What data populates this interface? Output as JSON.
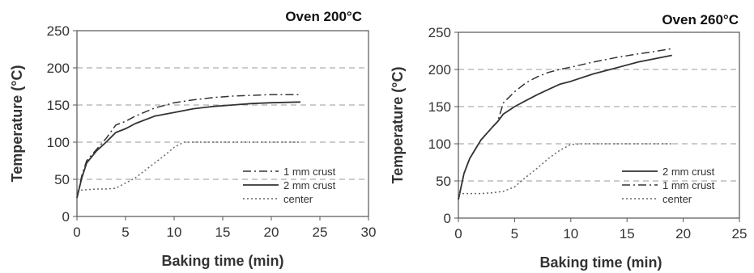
{
  "chart_data": [
    {
      "type": "line",
      "title": "Oven 200°C",
      "xlabel": "Baking time (min)",
      "ylabel": "Temperature (°C)",
      "xlim": [
        0,
        30
      ],
      "ylim": [
        0,
        250
      ],
      "xticks": [
        0,
        5,
        10,
        15,
        20,
        25,
        30
      ],
      "yticks": [
        0,
        50,
        100,
        150,
        200,
        250
      ],
      "grid": "horizontal-dashed",
      "legend_position": "bottom-right",
      "series": [
        {
          "name": "1 mm crust",
          "style": "dash-dot",
          "x": [
            0,
            0.5,
            1,
            2,
            3,
            4,
            5,
            6,
            8,
            10,
            12,
            14,
            16,
            18,
            20,
            23
          ],
          "y": [
            25,
            55,
            75,
            90,
            105,
            123,
            128,
            135,
            146,
            153,
            157,
            160,
            162,
            163,
            164,
            164
          ]
        },
        {
          "name": "2 mm crust",
          "style": "solid",
          "x": [
            0,
            0.5,
            1,
            2,
            3,
            4,
            5,
            6,
            8,
            10,
            12,
            14,
            16,
            18,
            20,
            23
          ],
          "y": [
            25,
            52,
            72,
            88,
            100,
            113,
            118,
            125,
            135,
            140,
            145,
            148,
            150,
            152,
            153,
            154
          ]
        },
        {
          "name": "center",
          "style": "dotted",
          "x": [
            0,
            1,
            2,
            3,
            4,
            5,
            6,
            7,
            8,
            9,
            10,
            11,
            12,
            14,
            16,
            18,
            20,
            23
          ],
          "y": [
            35,
            36,
            37,
            37,
            38,
            45,
            52,
            62,
            72,
            82,
            93,
            100,
            100,
            100,
            100,
            100,
            100,
            100
          ]
        }
      ]
    },
    {
      "type": "line",
      "title": "Oven 260°C",
      "xlabel": "Baking time (min)",
      "ylabel": "Temperature (°C)",
      "xlim": [
        0,
        25
      ],
      "ylim": [
        0,
        250
      ],
      "xticks": [
        0,
        5,
        10,
        15,
        20,
        25
      ],
      "yticks": [
        0,
        50,
        100,
        150,
        200,
        250
      ],
      "grid": "horizontal-dashed",
      "legend_position": "bottom-right",
      "series": [
        {
          "name": "2 mm crust",
          "style": "solid",
          "x": [
            0,
            0.5,
            1,
            2,
            3,
            3.5,
            4,
            5,
            6,
            7,
            8,
            9,
            10,
            12,
            14,
            16,
            17,
            19
          ],
          "y": [
            25,
            60,
            80,
            105,
            122,
            130,
            140,
            150,
            158,
            166,
            173,
            180,
            184,
            194,
            202,
            210,
            213,
            219
          ]
        },
        {
          "name": "1 mm crust",
          "style": "dash-dot",
          "x": [
            0,
            0.5,
            1,
            2,
            3,
            3.5,
            4,
            5,
            6,
            7,
            8,
            9,
            10,
            12,
            14,
            16,
            17,
            19
          ],
          "y": [
            25,
            60,
            80,
            105,
            122,
            130,
            155,
            170,
            182,
            190,
            196,
            200,
            203,
            210,
            216,
            221,
            223,
            228
          ]
        },
        {
          "name": "center",
          "style": "dotted",
          "x": [
            0,
            1,
            2,
            3,
            4,
            5,
            6,
            7,
            8,
            9,
            10,
            11,
            12,
            14,
            16,
            18,
            19
          ],
          "y": [
            33,
            33,
            33,
            34,
            36,
            42,
            55,
            67,
            80,
            91,
            99,
            100,
            100,
            100,
            100,
            100,
            100
          ]
        }
      ]
    }
  ]
}
